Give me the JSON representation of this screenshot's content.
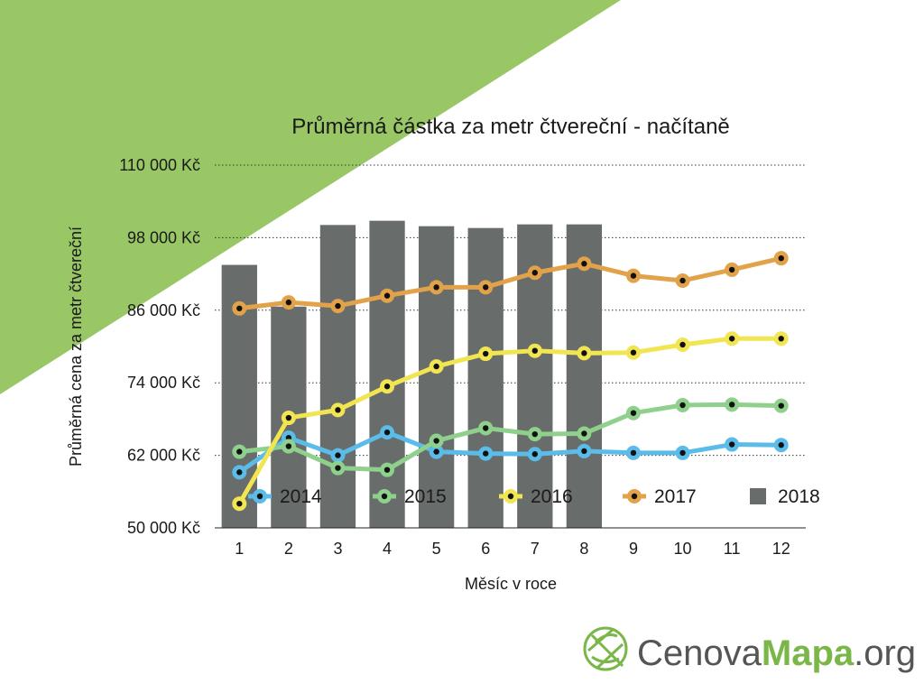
{
  "colors": {
    "background": "#ffffff",
    "corner_triangle": "#99c766",
    "bar": "#686d6b",
    "series_2014": "#5bbce9",
    "series_2015": "#8fd08c",
    "series_2016": "#f2e552",
    "series_2017": "#e2a24a",
    "brand_accent": "#7ab648",
    "brand_gray": "#555555"
  },
  "chart_data": {
    "type": "bar",
    "title": "Průměrná částka za metr čtvereční - načítaně",
    "xlabel": "Měsíc v roce",
    "ylabel": "Průměrná cena za metr čtvereční",
    "categories": [
      "1",
      "2",
      "3",
      "4",
      "5",
      "6",
      "7",
      "8",
      "9",
      "10",
      "11",
      "12"
    ],
    "ylim": [
      50000,
      110000
    ],
    "yticks": [
      50000,
      62000,
      74000,
      86000,
      98000,
      110000
    ],
    "ytick_labels": [
      "50 000 Kč",
      "62 000 Kč",
      "74 000 Kč",
      "86 000 Kč",
      "98 000 Kč",
      "110 000 Kč"
    ],
    "grid": "horizontal dotted",
    "legend_position": "bottom",
    "bar_series": {
      "name": "2018",
      "values": [
        93500,
        86600,
        100100,
        100800,
        99900,
        99600,
        100200,
        100200,
        null,
        null,
        null,
        null
      ]
    },
    "line_series": [
      {
        "name": "2014",
        "values": [
          59200,
          64900,
          62000,
          65800,
          62600,
          62300,
          62200,
          62700,
          62400,
          62400,
          63800,
          63700
        ]
      },
      {
        "name": "2015",
        "values": [
          62600,
          63500,
          59900,
          59600,
          64400,
          66500,
          65500,
          65600,
          69000,
          70300,
          70400,
          70200
        ]
      },
      {
        "name": "2016",
        "values": [
          54000,
          68200,
          69500,
          73400,
          76700,
          78800,
          79300,
          78900,
          79000,
          80300,
          81300,
          81300
        ]
      },
      {
        "name": "2017",
        "values": [
          86300,
          87300,
          86700,
          88400,
          89800,
          89800,
          92200,
          93700,
          91700,
          90900,
          92700,
          94600
        ]
      }
    ],
    "legend": [
      "2014",
      "2015",
      "2016",
      "2017",
      "2018"
    ]
  },
  "brand": {
    "part1": "Cenova",
    "part2": "Mapa",
    "part3": ".org"
  }
}
